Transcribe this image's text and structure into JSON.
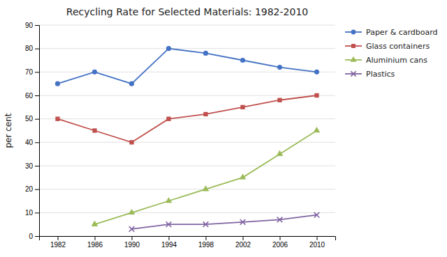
{
  "chart_data": {
    "type": "line",
    "title": "Recycling Rate for Selected Materials: 1982-2010",
    "y_label": "per cent",
    "x": [
      1982,
      1986,
      1990,
      1994,
      1998,
      2002,
      2006,
      2010
    ],
    "series": [
      {
        "name": "Paper & cardboard",
        "color": "#4472C4",
        "marker": "circle",
        "values": [
          65,
          70,
          65,
          80,
          78,
          75,
          72,
          70
        ]
      },
      {
        "name": "Glass containers",
        "color": "#C0504D",
        "marker": "square",
        "values": [
          50,
          45,
          40,
          50,
          52,
          55,
          58,
          60
        ]
      },
      {
        "name": "Aluminium cans",
        "color": "#9BBB59",
        "marker": "triangle",
        "values": [
          null,
          5,
          10,
          15,
          20,
          25,
          35,
          45
        ]
      },
      {
        "name": "Plastics",
        "color": "#8064A2",
        "marker": "cross",
        "values": [
          null,
          null,
          3,
          5,
          5,
          6,
          7,
          9
        ]
      }
    ],
    "xlim": [
      1980,
      2012
    ],
    "xticks": [
      1982,
      1986,
      1990,
      1994,
      1998,
      2002,
      2006,
      2010
    ],
    "ylim": [
      0,
      90
    ],
    "yticks": [
      0,
      10,
      20,
      30,
      40,
      50,
      60,
      70,
      80,
      90
    ],
    "grid": "y",
    "legend": "upper right"
  }
}
